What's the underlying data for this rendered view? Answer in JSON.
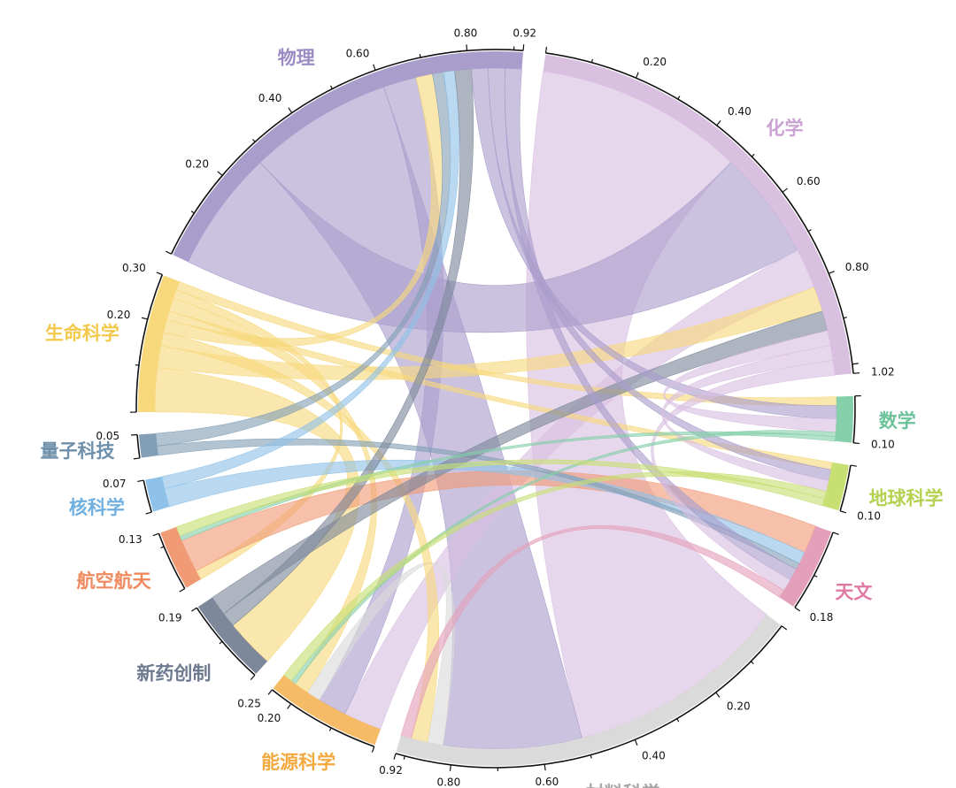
{
  "chart_data": {
    "type": "chord",
    "title": "",
    "segments": [
      {
        "id": "chem",
        "name": "化学",
        "value": 1.02,
        "color": "#d9bfe0",
        "label_color": "#c9a3d2",
        "tick_labels": [
          "0.20",
          "0.40",
          "0.60",
          "0.80",
          "1.02"
        ]
      },
      {
        "id": "math",
        "name": "数学",
        "value": 0.1,
        "color": "#86cfab",
        "label_color": "#6cc29a",
        "tick_labels": [
          "0.10"
        ]
      },
      {
        "id": "earth",
        "name": "地球科学",
        "value": 0.1,
        "color": "#c8df73",
        "label_color": "#b4d150",
        "tick_labels": [
          "0.10"
        ]
      },
      {
        "id": "astro",
        "name": "天文",
        "value": 0.18,
        "color": "#e4a0ba",
        "label_color": "#e07aa3",
        "tick_labels": [
          "0.18"
        ]
      },
      {
        "id": "mat",
        "name": "材料科学",
        "value": 0.92,
        "color": "#dadada",
        "label_color": "#a8a8a8",
        "tick_labels": [
          "0.20",
          "0.40",
          "0.60",
          "0.80",
          "0.92"
        ]
      },
      {
        "id": "energy",
        "name": "能源科学",
        "value": 0.25,
        "color": "#f6bb66",
        "label_color": "#f2a93f",
        "tick_labels": [
          "0.20",
          "0.25"
        ]
      },
      {
        "id": "drug",
        "name": "新药创制",
        "value": 0.19,
        "color": "#7d889b",
        "label_color": "#6d7a90",
        "tick_labels": [
          "0.19"
        ]
      },
      {
        "id": "aero",
        "name": "航空航天",
        "value": 0.13,
        "color": "#f09a76",
        "label_color": "#ee8a5e",
        "tick_labels": [
          "0.13"
        ]
      },
      {
        "id": "nuc",
        "name": "核科学",
        "value": 0.07,
        "color": "#8fc2e8",
        "label_color": "#6fb0e0",
        "tick_labels": [
          "0.07"
        ]
      },
      {
        "id": "quant",
        "name": "量子科技",
        "value": 0.05,
        "color": "#829fb7",
        "label_color": "#6f90ab",
        "tick_labels": [
          "0.05"
        ]
      },
      {
        "id": "life",
        "name": "生命科学",
        "value": 0.3,
        "color": "#f7d87b",
        "label_color": "#f2c94c",
        "tick_labels": [
          "0.20",
          "0.30"
        ]
      },
      {
        "id": "phys",
        "name": "物理",
        "value": 0.92,
        "color": "#a99dcc",
        "label_color": "#9b8cc4",
        "tick_labels": [
          "0.20",
          "0.40",
          "0.60",
          "0.80",
          "0.92"
        ]
      }
    ],
    "links": [
      {
        "source": "chem",
        "target": "mat",
        "value": 0.42
      },
      {
        "source": "phys",
        "target": "chem",
        "value": 0.22
      },
      {
        "source": "phys",
        "target": "mat",
        "value": 0.26
      },
      {
        "source": "chem",
        "target": "energy",
        "value": 0.08
      },
      {
        "source": "phys",
        "target": "energy",
        "value": 0.06
      },
      {
        "source": "mat",
        "target": "energy",
        "value": 0.03
      },
      {
        "source": "life",
        "target": "drug",
        "value": 0.1
      },
      {
        "source": "life",
        "target": "chem",
        "value": 0.05
      },
      {
        "source": "life",
        "target": "mat",
        "value": 0.03
      },
      {
        "source": "life",
        "target": "phys",
        "value": 0.03
      },
      {
        "source": "life",
        "target": "earth",
        "value": 0.02
      },
      {
        "source": "life",
        "target": "energy",
        "value": 0.03
      },
      {
        "source": "life",
        "target": "aero",
        "value": 0.02
      },
      {
        "source": "life",
        "target": "math",
        "value": 0.02
      },
      {
        "source": "aero",
        "target": "astro",
        "value": 0.07
      },
      {
        "source": "nuc",
        "target": "astro",
        "value": 0.03
      },
      {
        "source": "quant",
        "target": "astro",
        "value": 0.015
      },
      {
        "source": "quant",
        "target": "phys",
        "value": 0.02
      },
      {
        "source": "nuc",
        "target": "phys",
        "value": 0.02
      },
      {
        "source": "drug",
        "target": "phys",
        "value": 0.03
      },
      {
        "source": "drug",
        "target": "chem",
        "value": 0.04
      },
      {
        "source": "phys",
        "target": "math",
        "value": 0.03
      },
      {
        "source": "chem",
        "target": "math",
        "value": 0.03
      },
      {
        "source": "phys",
        "target": "earth",
        "value": 0.03
      },
      {
        "source": "chem",
        "target": "earth",
        "value": 0.03
      },
      {
        "source": "phys",
        "target": "astro",
        "value": 0.03
      },
      {
        "source": "chem",
        "target": "astro",
        "value": 0.03
      },
      {
        "source": "math",
        "target": "energy",
        "value": 0.01
      },
      {
        "source": "math",
        "target": "aero",
        "value": 0.01
      },
      {
        "source": "earth",
        "target": "energy",
        "value": 0.02
      },
      {
        "source": "earth",
        "target": "aero",
        "value": 0.02
      },
      {
        "source": "astro",
        "target": "mat",
        "value": 0.02
      }
    ]
  }
}
